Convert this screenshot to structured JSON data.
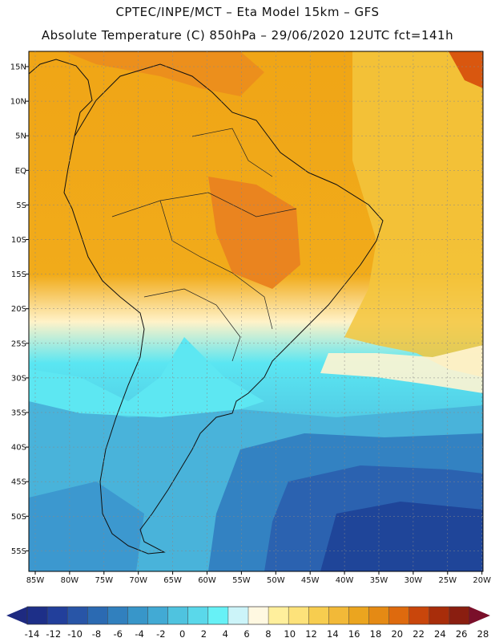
{
  "header": {
    "line1": "CPTEC/INPE/MCT –  Eta Model 15km – GFS",
    "line2": "Absolute Temperature (C) 850hPa – 29/06/2020 12UTC fct=141h"
  },
  "map": {
    "region": "South America",
    "lat_ticks": [
      "15N",
      "10N",
      "5N",
      "EQ",
      "5S",
      "10S",
      "15S",
      "20S",
      "25S",
      "30S",
      "35S",
      "40S",
      "45S",
      "50S",
      "55S"
    ],
    "lon_ticks": [
      "85W",
      "80W",
      "75W",
      "70W",
      "65W",
      "60W",
      "55W",
      "50W",
      "45W",
      "40W",
      "35W",
      "30W",
      "25W",
      "20W"
    ],
    "colors": {
      "hot": "#f2a214",
      "warm": "#eb8e1c",
      "yellow": "#f6cc40",
      "pale": "#fff0bf",
      "cold_cyan": "#58e8f4",
      "cool": "#52c4e2",
      "cold": "#3c9ad0",
      "very_cold": "#2b66b3",
      "deep": "#1e3f95"
    }
  },
  "colorbar": {
    "labels": [
      "-14",
      "-12",
      "-10",
      "-8",
      "-6",
      "-4",
      "-2",
      "0",
      "2",
      "4",
      "6",
      "8",
      "10",
      "12",
      "14",
      "16",
      "18",
      "20",
      "22",
      "24",
      "26",
      "28"
    ],
    "colors": [
      "#1d2f88",
      "#223f9b",
      "#2855a7",
      "#2b6ab2",
      "#3180be",
      "#3896c9",
      "#42aad4",
      "#4fc3df",
      "#5ad8ea",
      "#67f1f6",
      "#ccf4f9",
      "#fff8e1",
      "#ffef9c",
      "#fde27a",
      "#f7cd4f",
      "#f2b938",
      "#eba51f",
      "#e58a14",
      "#de6a0e",
      "#c9460b",
      "#a82d0a",
      "#8a1e10"
    ],
    "left_color": "#1e2a80",
    "right_color": "#7a0f2a"
  }
}
